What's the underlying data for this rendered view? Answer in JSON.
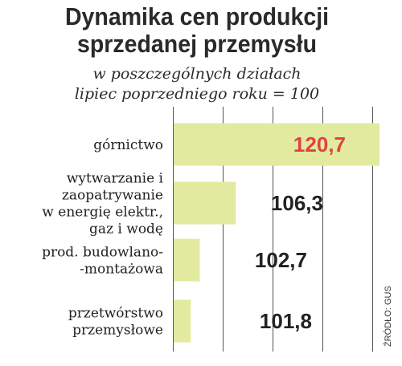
{
  "title_lines": [
    "Dynamika cen produkcji",
    "sprzedanej przemysłu"
  ],
  "subtitle_lines": [
    "w poszczególnych działach",
    "lipiec poprzedniego roku = 100"
  ],
  "source": "ŹRÓDŁO: GUS",
  "colors": {
    "bar": "#e2ea9f",
    "highlight_value": "#e04242",
    "value": "#222222",
    "grid": "#555555"
  },
  "chart_data": {
    "type": "bar",
    "orientation": "horizontal",
    "baseline": 100,
    "xlim": [
      100,
      121
    ],
    "categories": [
      [
        "górnictwo"
      ],
      [
        "wytwarzanie i",
        "zaopatrywanie",
        "w energię elektr.,",
        "gaz i wodę"
      ],
      [
        "prod. budowlano-",
        "-montażowa"
      ],
      [
        "przetwórstwo",
        "przemysłowe"
      ]
    ],
    "values": [
      120.7,
      106.3,
      102.7,
      101.8
    ],
    "value_labels": [
      "120,7",
      "106,3",
      "102,7",
      "101,8"
    ],
    "highlighted_index": 0,
    "grid": true
  }
}
